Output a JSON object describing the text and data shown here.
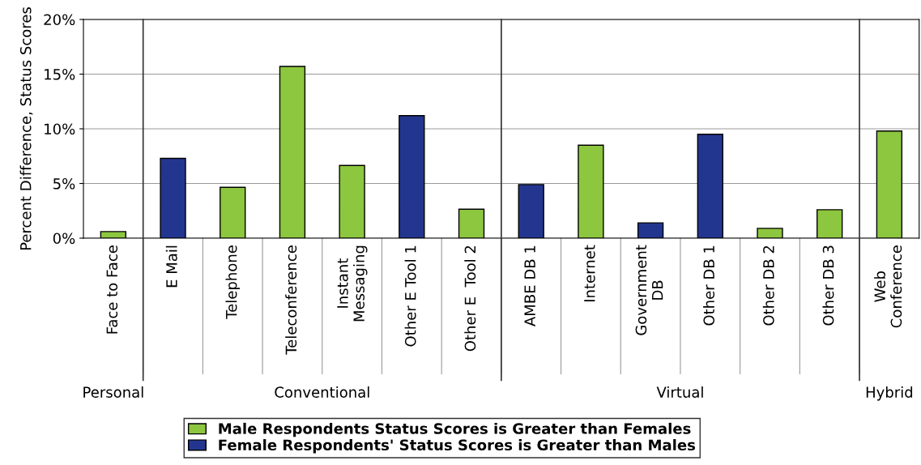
{
  "chart_data": {
    "type": "bar",
    "ylabel": "Percent Difference, Status Scores",
    "categories": [
      "Face to Face",
      "E Mail",
      "Telephone",
      "Teleconference",
      "Instant\nMessaging",
      "Other E Tool 1",
      "Other E  Tool 2",
      "AMBE DB 1",
      "Internet",
      "Government\nDB",
      "Other DB 1",
      "Other DB 2",
      "Other DB 3",
      "Web\nConference"
    ],
    "series": [
      {
        "name": "Male Respondents Status Scores is Greater than Females",
        "color": "#8dc63f",
        "values": [
          0.6,
          null,
          4.65,
          15.7,
          6.65,
          null,
          2.65,
          null,
          8.5,
          null,
          null,
          0.9,
          2.6,
          9.8
        ]
      },
      {
        "name": "Female Respondents' Status Scores is Greater than Males",
        "color": "#23368f",
        "values": [
          null,
          7.3,
          null,
          null,
          null,
          11.2,
          null,
          4.9,
          null,
          1.4,
          9.5,
          null,
          null,
          null
        ]
      }
    ],
    "ylim": [
      0,
      20
    ],
    "yticks": [
      {
        "value": 0,
        "label": "0%"
      },
      {
        "value": 5,
        "label": "5%"
      },
      {
        "value": 10,
        "label": "10%"
      },
      {
        "value": 15,
        "label": "15%"
      },
      {
        "value": 20,
        "label": "20%"
      }
    ],
    "annotations": [
      "Personal",
      "Conventional",
      "Virtual",
      "Hybrid"
    ],
    "grid": "y",
    "legend": "bottom"
  }
}
